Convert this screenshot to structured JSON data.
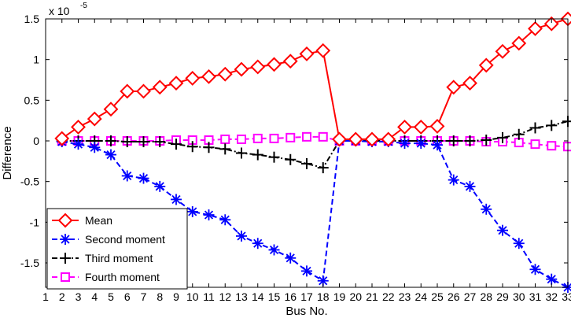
{
  "chart_data": {
    "type": "line",
    "title": "",
    "xlabel": "Bus No.",
    "ylabel": "Difference",
    "y_multiplier_label": "x 10",
    "y_multiplier_exponent": "-5",
    "xlim": [
      1,
      33
    ],
    "ylim": [
      -1.8,
      1.5
    ],
    "x_ticks": [
      "1",
      "2",
      "3",
      "4",
      "5",
      "6",
      "7",
      "8",
      "9",
      "10",
      "11",
      "12",
      "13",
      "14",
      "15",
      "16",
      "17",
      "18",
      "19",
      "20",
      "21",
      "22",
      "23",
      "24",
      "25",
      "26",
      "27",
      "28",
      "29",
      "30",
      "31",
      "32",
      "33"
    ],
    "y_ticks": [
      {
        "value": -1.5,
        "label": "-1.5"
      },
      {
        "value": -1,
        "label": "-1"
      },
      {
        "value": -0.5,
        "label": "-0.5"
      },
      {
        "value": 0,
        "label": "0"
      },
      {
        "value": 0.5,
        "label": "0.5"
      },
      {
        "value": 1,
        "label": "1"
      },
      {
        "value": 1.5,
        "label": "1.5"
      }
    ],
    "grid": false,
    "legend_position": "bottom-left",
    "x": [
      2,
      3,
      4,
      5,
      6,
      7,
      8,
      9,
      10,
      11,
      12,
      13,
      14,
      15,
      16,
      17,
      18,
      19,
      20,
      21,
      22,
      23,
      24,
      25,
      26,
      27,
      28,
      29,
      30,
      31,
      32,
      33
    ],
    "series": [
      {
        "name": "Mean",
        "color": "#ff0000",
        "marker": "diamond",
        "dash": "solid",
        "values": [
          0.03,
          0.17,
          0.27,
          0.39,
          0.61,
          0.61,
          0.66,
          0.71,
          0.77,
          0.79,
          0.82,
          0.88,
          0.91,
          0.94,
          0.98,
          1.07,
          1.11,
          0.02,
          0.02,
          0.02,
          0.02,
          0.17,
          0.17,
          0.18,
          0.66,
          0.71,
          0.93,
          1.1,
          1.2,
          1.38,
          1.44,
          1.5
        ]
      },
      {
        "name": "Second moment",
        "color": "#0000ff",
        "marker": "asterisk",
        "dash": "dashed",
        "values": [
          -0.01,
          -0.04,
          -0.08,
          -0.17,
          -0.43,
          -0.46,
          -0.56,
          -0.72,
          -0.87,
          -0.91,
          -0.97,
          -1.17,
          -1.26,
          -1.34,
          -1.44,
          -1.6,
          -1.72,
          0.0,
          0.0,
          -0.01,
          -0.01,
          -0.03,
          -0.03,
          -0.05,
          -0.48,
          -0.56,
          -0.84,
          -1.1,
          -1.26,
          -1.58,
          -1.7,
          -1.8
        ]
      },
      {
        "name": "Third moment",
        "color": "#000000",
        "marker": "plus",
        "dash": "dashdot",
        "values": [
          0.0,
          0.0,
          0.0,
          0.0,
          -0.01,
          -0.01,
          -0.01,
          -0.04,
          -0.07,
          -0.08,
          -0.1,
          -0.15,
          -0.17,
          -0.2,
          -0.23,
          -0.28,
          -0.33,
          0.0,
          0.0,
          0.0,
          0.0,
          0.0,
          0.0,
          0.0,
          0.0,
          0.0,
          0.01,
          0.04,
          0.08,
          0.16,
          0.19,
          0.24
        ]
      },
      {
        "name": "Fourth moment",
        "color": "#ff00ff",
        "marker": "square",
        "dash": "dashed",
        "values": [
          0.0,
          0.0,
          0.0,
          0.0,
          0.0,
          0.0,
          0.0,
          0.01,
          0.01,
          0.01,
          0.02,
          0.02,
          0.03,
          0.03,
          0.04,
          0.05,
          0.05,
          0.0,
          0.0,
          0.0,
          0.0,
          0.0,
          0.0,
          0.0,
          0.0,
          0.0,
          -0.01,
          -0.01,
          -0.02,
          -0.04,
          -0.06,
          -0.07
        ]
      }
    ]
  }
}
